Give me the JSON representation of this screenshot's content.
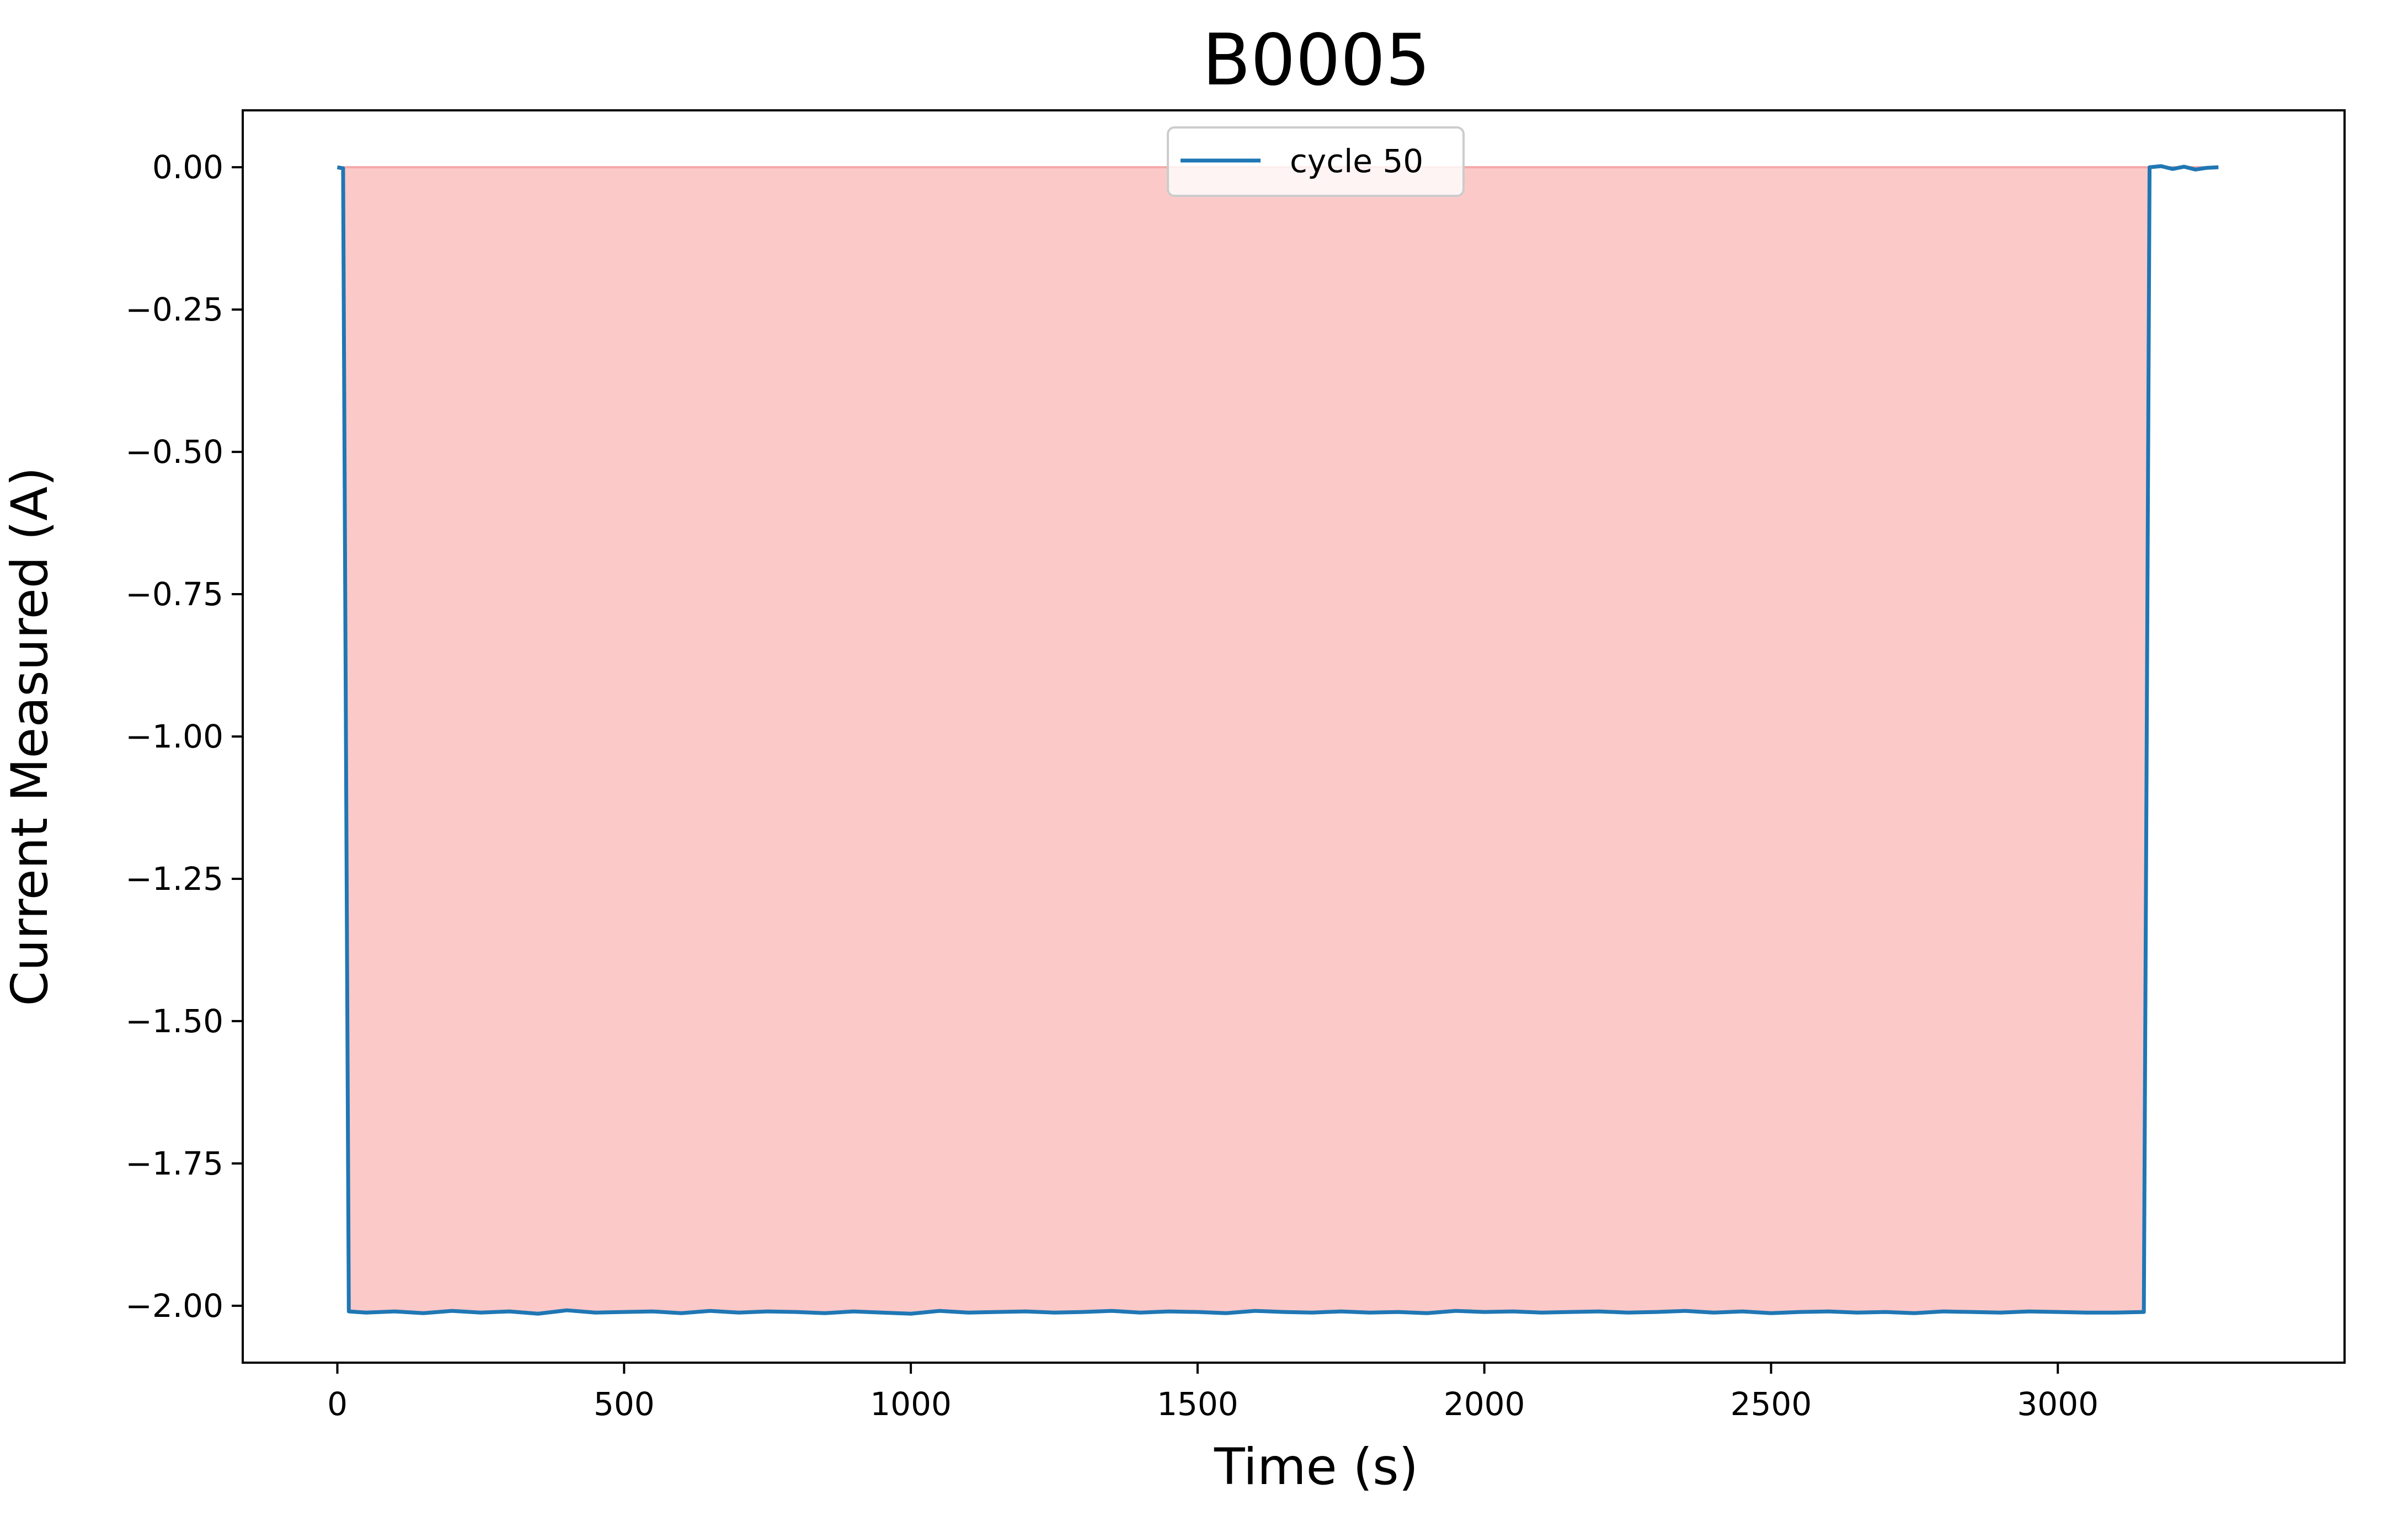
{
  "chart_data": {
    "type": "line",
    "title": "B0005",
    "xlabel": "Time (s)",
    "ylabel": "Current Measured (A)",
    "xlim": [
      -165,
      3500
    ],
    "ylim": [
      -2.1,
      0.1
    ],
    "x_ticks": [
      0,
      500,
      1000,
      1500,
      2000,
      2500,
      3000
    ],
    "x_tick_labels": [
      "0",
      "500",
      "1000",
      "1500",
      "2000",
      "2500",
      "3000"
    ],
    "y_ticks": [
      0.0,
      -0.25,
      -0.5,
      -0.75,
      -1.0,
      -1.25,
      -1.5,
      -1.75,
      -2.0
    ],
    "y_tick_labels": [
      "0.00",
      "−0.25",
      "−0.50",
      "−0.75",
      "−1.00",
      "−1.25",
      "−1.50",
      "−1.75",
      "−2.00"
    ],
    "grid": false,
    "legend_position": "upper-center",
    "fill": {
      "color": "#fcc9c9",
      "edge_color": "#f5a8a8",
      "between": [
        0,
        "series"
      ]
    },
    "series": [
      {
        "name": "cycle 50",
        "color": "#1f77b4",
        "x": [
          0,
          10,
          20,
          50,
          100,
          150,
          200,
          250,
          300,
          350,
          400,
          450,
          500,
          550,
          600,
          650,
          700,
          750,
          800,
          850,
          900,
          950,
          1000,
          1050,
          1100,
          1150,
          1200,
          1250,
          1300,
          1350,
          1400,
          1450,
          1500,
          1550,
          1600,
          1650,
          1700,
          1750,
          1800,
          1850,
          1900,
          1950,
          2000,
          2050,
          2100,
          2150,
          2200,
          2250,
          2300,
          2350,
          2400,
          2450,
          2500,
          2550,
          2600,
          2650,
          2700,
          2750,
          2800,
          2850,
          2900,
          2950,
          3000,
          3050,
          3100,
          3150,
          3160,
          3180,
          3200,
          3220,
          3240,
          3260,
          3280
        ],
        "y": [
          0.0,
          -0.002,
          -2.01,
          -2.012,
          -2.01,
          -2.013,
          -2.009,
          -2.012,
          -2.01,
          -2.014,
          -2.008,
          -2.012,
          -2.011,
          -2.01,
          -2.013,
          -2.009,
          -2.012,
          -2.01,
          -2.011,
          -2.013,
          -2.01,
          -2.012,
          -2.014,
          -2.009,
          -2.012,
          -2.011,
          -2.01,
          -2.012,
          -2.011,
          -2.009,
          -2.012,
          -2.01,
          -2.011,
          -2.013,
          -2.009,
          -2.011,
          -2.012,
          -2.01,
          -2.012,
          -2.011,
          -2.013,
          -2.009,
          -2.011,
          -2.01,
          -2.012,
          -2.011,
          -2.01,
          -2.012,
          -2.011,
          -2.009,
          -2.012,
          -2.01,
          -2.013,
          -2.011,
          -2.01,
          -2.012,
          -2.011,
          -2.013,
          -2.01,
          -2.011,
          -2.012,
          -2.01,
          -2.011,
          -2.012,
          -2.012,
          -2.011,
          0.0,
          0.002,
          -0.003,
          0.001,
          -0.004,
          -0.001,
          0.0
        ]
      }
    ]
  }
}
